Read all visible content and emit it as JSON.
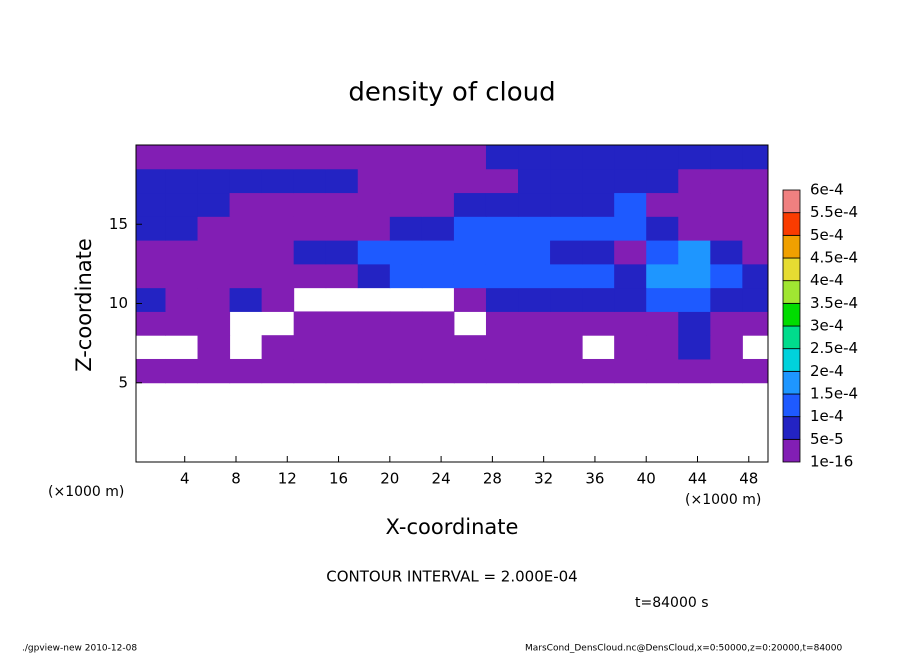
{
  "chart_data": {
    "type": "contour",
    "title": "density of cloud",
    "x_label": "X-coordinate",
    "y_label": "Z-coordinate",
    "x_unit_label": "(×1000 m)",
    "annotation": "CONTOUR INTERVAL = 2.000E-04",
    "time_label": "t=84000 s",
    "footer_left": "./gpview-new  2010-12-08",
    "footer_right": "MarsCond_DensCloud.nc@DensCloud,x=0:50000,z=0:20000,t=84000",
    "xlim": [
      0.2,
      49.5
    ],
    "ylim": [
      0,
      20
    ],
    "xticks": [
      4,
      8,
      12,
      16,
      20,
      24,
      28,
      32,
      36,
      40,
      44,
      48
    ],
    "yticks": [
      5,
      10,
      15
    ],
    "x": [
      1.25,
      3.75,
      6.25,
      8.75,
      11.25,
      13.75,
      16.25,
      18.75,
      21.25,
      23.75,
      26.25,
      28.75,
      31.25,
      33.75,
      36.25,
      38.75,
      41.25,
      43.75,
      46.25,
      48.75
    ],
    "y": [
      5.75,
      7.25,
      8.75,
      10.25,
      11.75,
      13.25,
      14.75,
      16.25,
      17.75,
      19.25
    ],
    "z": [
      [
        2e-05,
        2e-05,
        2e-05,
        2e-05,
        2e-05,
        2e-05,
        2e-05,
        2e-05,
        2e-05,
        2e-05,
        2e-05,
        2e-05,
        2e-05,
        2e-05,
        2e-05,
        2e-05,
        2e-05,
        2e-05,
        2e-05,
        2e-05
      ],
      [
        null,
        null,
        2e-05,
        null,
        2e-05,
        2e-05,
        2e-05,
        2e-05,
        2e-05,
        2e-05,
        2e-05,
        2e-05,
        2e-05,
        2e-05,
        null,
        2e-05,
        2e-05,
        6e-05,
        2e-05,
        null
      ],
      [
        2e-05,
        2e-05,
        2e-05,
        null,
        null,
        2e-05,
        2e-05,
        2e-05,
        2e-05,
        2e-05,
        null,
        2e-05,
        2e-05,
        2e-05,
        2e-05,
        2e-05,
        2e-05,
        7e-05,
        2e-05,
        2e-05
      ],
      [
        6e-05,
        2e-05,
        2e-05,
        6e-05,
        2e-05,
        null,
        null,
        null,
        null,
        null,
        2e-05,
        6e-05,
        6e-05,
        6e-05,
        6e-05,
        6e-05,
        0.00012,
        0.00012,
        7e-05,
        7e-05
      ],
      [
        2e-05,
        2e-05,
        2e-05,
        2e-05,
        2e-05,
        2e-05,
        2e-05,
        7e-05,
        0.00011,
        0.00011,
        0.00011,
        0.00011,
        0.00011,
        0.00011,
        0.00011,
        7e-05,
        0.00016,
        0.00017,
        0.00012,
        7e-05
      ],
      [
        2e-05,
        2e-05,
        2e-05,
        2e-05,
        2e-05,
        6e-05,
        7e-05,
        0.00011,
        0.00012,
        0.00012,
        0.00012,
        0.00011,
        0.00011,
        7e-05,
        7e-05,
        2e-05,
        0.00012,
        0.00016,
        7e-05,
        2e-05
      ],
      [
        7e-05,
        7e-05,
        2e-05,
        2e-05,
        2e-05,
        2e-05,
        2e-05,
        2e-05,
        7e-05,
        7e-05,
        0.00011,
        0.00011,
        0.00011,
        0.00011,
        0.00011,
        0.00011,
        7e-05,
        2e-05,
        2e-05,
        2e-05
      ],
      [
        7e-05,
        7e-05,
        7e-05,
        2e-05,
        2e-05,
        2e-05,
        2e-05,
        2e-05,
        2e-05,
        2e-05,
        7e-05,
        7e-05,
        7e-05,
        7e-05,
        7e-05,
        0.00011,
        2e-05,
        2e-05,
        2e-05,
        2e-05
      ],
      [
        7e-05,
        7e-05,
        7e-05,
        7e-05,
        7e-05,
        7e-05,
        7e-05,
        2e-05,
        2e-05,
        2e-05,
        2e-05,
        2e-05,
        7e-05,
        7e-05,
        7e-05,
        7e-05,
        7e-05,
        2e-05,
        2e-05,
        2e-05
      ],
      [
        2e-05,
        2e-05,
        2e-05,
        2e-05,
        2e-05,
        2e-05,
        2e-05,
        2e-05,
        2e-05,
        2e-05,
        2e-05,
        7e-05,
        7e-05,
        7e-05,
        7e-05,
        7e-05,
        7e-05,
        7e-05,
        7e-05,
        7e-05
      ]
    ],
    "levels": [
      {
        "value": 1e-16,
        "label": "1e-16"
      },
      {
        "value": 5e-05,
        "label": "5e-5"
      },
      {
        "value": 0.0001,
        "label": "1e-4"
      },
      {
        "value": 0.00015,
        "label": "1.5e-4"
      },
      {
        "value": 0.0002,
        "label": "2e-4"
      },
      {
        "value": 0.00025,
        "label": "2.5e-4"
      },
      {
        "value": 0.0003,
        "label": "3e-4"
      },
      {
        "value": 0.00035,
        "label": "3.5e-4"
      },
      {
        "value": 0.0004,
        "label": "4e-4"
      },
      {
        "value": 0.00045,
        "label": "4.5e-4"
      },
      {
        "value": 0.0005,
        "label": "5e-4"
      },
      {
        "value": 0.00055,
        "label": "5.5e-4"
      },
      {
        "value": 0.0006,
        "label": "6e-4"
      }
    ],
    "colors": [
      "#821eb4",
      "#2323c3",
      "#1e5aff",
      "#1e96ff",
      "#00d2dc",
      "#00dc8c",
      "#00dc00",
      "#a0e632",
      "#e6dc32",
      "#f0a000",
      "#fa3c00",
      "#f08080"
    ]
  }
}
